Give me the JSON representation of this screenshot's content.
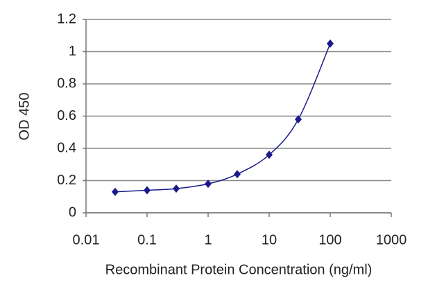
{
  "chart_data": {
    "type": "line",
    "x_label": "Recombinant Protein Concentration (ng/ml)",
    "y_label": "OD 450",
    "x": [
      0.03,
      0.1,
      0.3,
      1,
      3,
      10,
      30,
      100
    ],
    "series": [
      {
        "color": "#1a1a8c",
        "values": [
          0.13,
          0.14,
          0.15,
          0.18,
          0.24,
          0.36,
          0.58,
          1.05
        ]
      }
    ],
    "xlim": [
      0.01,
      1000
    ],
    "xticks": [
      0.01,
      0.1,
      1,
      10,
      100,
      1000
    ],
    "x_scale": "log",
    "ylim": [
      0,
      1.2
    ],
    "yticks": [
      0,
      0.2,
      0.4,
      0.6,
      0.8,
      1,
      1.2
    ],
    "grid": true
  }
}
